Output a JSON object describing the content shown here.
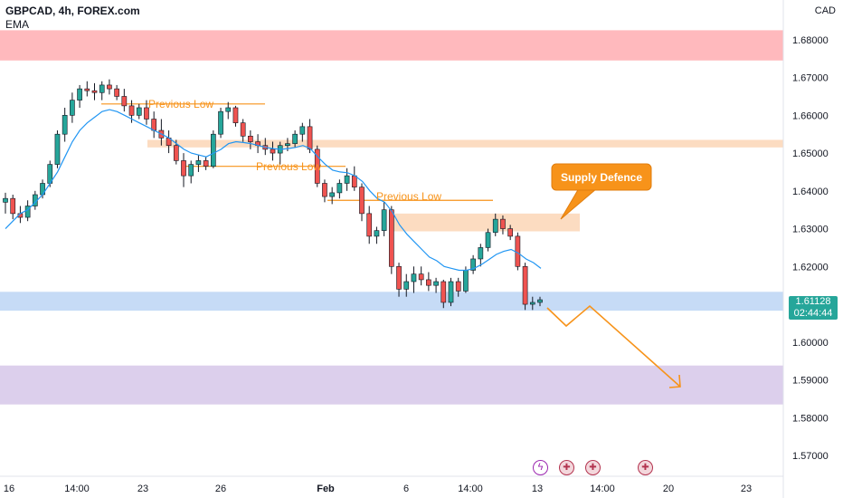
{
  "header": {
    "symbol_line": "GBPCAD, 4h, FOREX.com",
    "indicator": "EMA"
  },
  "axis": {
    "currency": "CAD"
  },
  "price_tag": {
    "price": "1.61128",
    "countdown": "02:44:44"
  },
  "colors": {
    "up": "#26a69a",
    "down": "#ef5350",
    "wick": "#131722",
    "ema": "#2196f3",
    "annotation": "#f7931a",
    "zone_red": "#ffb9bd",
    "zone_orange": "#fcdcc1",
    "zone_blue": "#c6dbf6",
    "zone_purple": "#dccfec"
  },
  "events": [
    {
      "icon": "flash-icon",
      "glyph": "ϟ"
    },
    {
      "icon": "uk-flag-icon",
      "glyph": "✚"
    },
    {
      "icon": "uk-flag-icon",
      "glyph": "✚"
    },
    {
      "icon": "uk-flag-icon",
      "glyph": "✚"
    }
  ],
  "chart_data": {
    "type": "candlestick",
    "title": "GBPCAD, 4h, FOREX.com",
    "ylim": [
      1.5645,
      1.6905
    ],
    "y_ticks": [
      "1.68000",
      "1.67000",
      "1.66000",
      "1.65000",
      "1.64000",
      "1.63000",
      "1.62000",
      "1.61000",
      "1.60000",
      "1.59000",
      "1.58000",
      "1.57000"
    ],
    "x_ticks": [
      "16",
      "14:00",
      "23",
      "26",
      "Feb",
      "6",
      "14:00",
      "13",
      "14:00",
      "20",
      "23"
    ],
    "zones": [
      {
        "name": "red-zone",
        "top": 1.6825,
        "bottom": 1.6745
      },
      {
        "name": "orange-zone-upper",
        "top": 1.6535,
        "bottom": 1.6515
      },
      {
        "name": "orange-zone-lower",
        "top": 1.634,
        "bottom": 1.6293
      },
      {
        "name": "blue-zone",
        "top": 1.6133,
        "bottom": 1.6083
      },
      {
        "name": "purple-zone",
        "top": 1.5938,
        "bottom": 1.5835
      }
    ],
    "annotations": [
      {
        "text": "Previous Low",
        "price": 1.663
      },
      {
        "text": "Previous Low",
        "price": 1.6465
      },
      {
        "text": "Previous Low",
        "price": 1.6375
      },
      {
        "text": "Supply Defence"
      }
    ],
    "ohlc": [
      [
        1.637,
        1.6395,
        1.634,
        1.638
      ],
      [
        1.638,
        1.639,
        1.6325,
        1.634
      ],
      [
        1.634,
        1.636,
        1.6315,
        1.633
      ],
      [
        1.633,
        1.6375,
        1.632,
        1.636
      ],
      [
        1.636,
        1.64,
        1.635,
        1.639
      ],
      [
        1.639,
        1.643,
        1.638,
        1.642
      ],
      [
        1.642,
        1.648,
        1.641,
        1.647
      ],
      [
        1.647,
        1.656,
        1.646,
        1.655
      ],
      [
        1.655,
        1.662,
        1.653,
        1.66
      ],
      [
        1.66,
        1.666,
        1.658,
        1.664
      ],
      [
        1.664,
        1.668,
        1.662,
        1.667
      ],
      [
        1.667,
        1.669,
        1.665,
        1.6665
      ],
      [
        1.6665,
        1.6685,
        1.664,
        1.666
      ],
      [
        1.666,
        1.669,
        1.664,
        1.668
      ],
      [
        1.668,
        1.6695,
        1.6655,
        1.667
      ],
      [
        1.667,
        1.668,
        1.664,
        1.665
      ],
      [
        1.665,
        1.667,
        1.661,
        1.6625
      ],
      [
        1.6625,
        1.664,
        1.658,
        1.66
      ],
      [
        1.66,
        1.663,
        1.659,
        1.662
      ],
      [
        1.662,
        1.664,
        1.6575,
        1.659
      ],
      [
        1.659,
        1.661,
        1.654,
        1.656
      ],
      [
        1.656,
        1.659,
        1.652,
        1.654
      ],
      [
        1.654,
        1.656,
        1.65,
        1.652
      ],
      [
        1.652,
        1.6535,
        1.647,
        1.648
      ],
      [
        1.648,
        1.65,
        1.641,
        1.644
      ],
      [
        1.644,
        1.648,
        1.642,
        1.647
      ],
      [
        1.647,
        1.6495,
        1.645,
        1.648
      ],
      [
        1.648,
        1.649,
        1.6455,
        1.6465
      ],
      [
        1.6465,
        1.656,
        1.646,
        1.655
      ],
      [
        1.655,
        1.662,
        1.654,
        1.661
      ],
      [
        1.661,
        1.6635,
        1.659,
        1.662
      ],
      [
        1.662,
        1.6625,
        1.657,
        1.658
      ],
      [
        1.658,
        1.659,
        1.653,
        1.6545
      ],
      [
        1.6545,
        1.656,
        1.651,
        1.653
      ],
      [
        1.653,
        1.655,
        1.65,
        1.652
      ],
      [
        1.652,
        1.654,
        1.6495,
        1.651
      ],
      [
        1.651,
        1.653,
        1.648,
        1.65
      ],
      [
        1.65,
        1.653,
        1.647,
        1.652
      ],
      [
        1.652,
        1.654,
        1.6505,
        1.6525
      ],
      [
        1.6525,
        1.656,
        1.6515,
        1.655
      ],
      [
        1.655,
        1.658,
        1.653,
        1.657
      ],
      [
        1.657,
        1.659,
        1.65,
        1.651
      ],
      [
        1.651,
        1.652,
        1.641,
        1.642
      ],
      [
        1.642,
        1.643,
        1.637,
        1.6385
      ],
      [
        1.6385,
        1.641,
        1.6365,
        1.6395
      ],
      [
        1.6395,
        1.643,
        1.638,
        1.642
      ],
      [
        1.642,
        1.646,
        1.64,
        1.644
      ],
      [
        1.644,
        1.6465,
        1.64,
        1.641
      ],
      [
        1.641,
        1.642,
        1.632,
        1.634
      ],
      [
        1.634,
        1.636,
        1.626,
        1.628
      ],
      [
        1.628,
        1.6305,
        1.626,
        1.6295
      ],
      [
        1.6295,
        1.637,
        1.628,
        1.635
      ],
      [
        1.635,
        1.636,
        1.618,
        1.62
      ],
      [
        1.62,
        1.621,
        1.612,
        1.614
      ],
      [
        1.614,
        1.618,
        1.612,
        1.616
      ],
      [
        1.616,
        1.62,
        1.613,
        1.618
      ],
      [
        1.618,
        1.62,
        1.615,
        1.6165
      ],
      [
        1.6165,
        1.6185,
        1.6135,
        1.615
      ],
      [
        1.615,
        1.617,
        1.613,
        1.616
      ],
      [
        1.616,
        1.6165,
        1.609,
        1.6105
      ],
      [
        1.6105,
        1.617,
        1.6095,
        1.616
      ],
      [
        1.616,
        1.617,
        1.612,
        1.6135
      ],
      [
        1.6135,
        1.62,
        1.613,
        1.619
      ],
      [
        1.619,
        1.623,
        1.618,
        1.622
      ],
      [
        1.622,
        1.626,
        1.62,
        1.625
      ],
      [
        1.625,
        1.63,
        1.624,
        1.629
      ],
      [
        1.629,
        1.634,
        1.628,
        1.6325
      ],
      [
        1.6325,
        1.6335,
        1.6285,
        1.63
      ],
      [
        1.63,
        1.631,
        1.627,
        1.628
      ],
      [
        1.628,
        1.629,
        1.619,
        1.62
      ],
      [
        1.62,
        1.621,
        1.6085,
        1.61
      ],
      [
        1.61,
        1.612,
        1.6085,
        1.6105
      ],
      [
        1.6105,
        1.612,
        1.6095,
        1.6112
      ]
    ],
    "ema": [
      1.63,
      1.632,
      1.634,
      1.635,
      1.637,
      1.639,
      1.642,
      1.645,
      1.649,
      1.653,
      1.656,
      1.658,
      1.6595,
      1.661,
      1.6615,
      1.661,
      1.66,
      1.659,
      1.658,
      1.657,
      1.656,
      1.655,
      1.654,
      1.6525,
      1.651,
      1.65,
      1.6495,
      1.649,
      1.65,
      1.651,
      1.6525,
      1.653,
      1.6528,
      1.6525,
      1.652,
      1.6515,
      1.6512,
      1.651,
      1.6512,
      1.6515,
      1.652,
      1.6512,
      1.649,
      1.647,
      1.6455,
      1.645,
      1.6448,
      1.644,
      1.6425,
      1.64,
      1.638,
      1.637,
      1.6345,
      1.631,
      1.6285,
      1.6265,
      1.6245,
      1.6225,
      1.6215,
      1.62,
      1.6195,
      1.619,
      1.619,
      1.6195,
      1.6205,
      1.6218,
      1.6232,
      1.624,
      1.6245,
      1.6235,
      1.622,
      1.621,
      1.6195
    ]
  }
}
